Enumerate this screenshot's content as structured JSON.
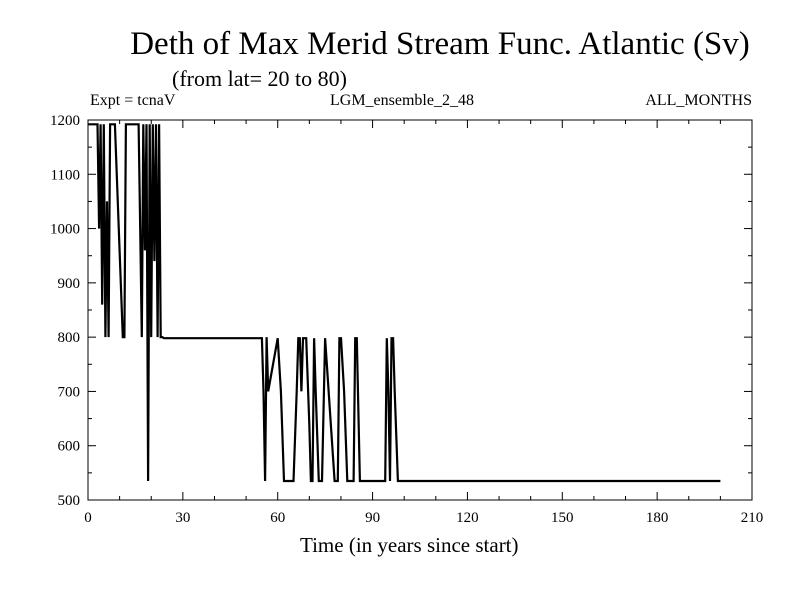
{
  "chart_data": {
    "type": "line",
    "title": "Deth of Max Merid Stream Func. Atlantic (Sv)",
    "subtitle": "(from lat= 20 to 80)",
    "info_left": "Expt = tcnaV",
    "info_center": "LGM_ensemble_2_48",
    "info_right": "ALL_MONTHS",
    "xlabel": "Time (in years since start)",
    "ylabel": "",
    "xlim": [
      0,
      210
    ],
    "ylim": [
      500,
      1200
    ],
    "xticks": [
      0,
      30,
      60,
      90,
      120,
      150,
      180,
      210
    ],
    "yticks": [
      500,
      600,
      700,
      800,
      900,
      1000,
      1100,
      1200
    ],
    "grid": false,
    "series": [
      {
        "x": [
          0,
          3,
          3.5,
          4,
          4.5,
          5,
          5.5,
          6,
          6.5,
          7,
          7.5,
          8,
          8.5,
          11,
          11.5,
          12,
          12.5,
          16,
          16.5,
          17,
          17.5,
          18,
          18.5,
          19,
          19.5,
          20,
          20.5,
          21,
          21.5,
          22,
          22.5,
          23,
          23.5,
          24,
          54,
          55,
          55.5,
          56,
          56.5,
          57,
          60,
          61,
          62,
          63,
          65,
          66,
          66.5,
          67,
          67.5,
          68,
          69,
          70,
          70.5,
          71,
          71.5,
          72,
          73,
          74,
          75,
          78,
          79,
          79.5,
          80,
          81,
          82,
          83,
          84,
          84.5,
          85,
          86,
          94,
          94.5,
          95,
          95.5,
          96,
          96.5,
          97,
          98,
          200
        ],
        "y": [
          1192,
          1192,
          1000,
          1192,
          860,
          1192,
          800,
          1050,
          800,
          1192,
          1192,
          1192,
          1192,
          800,
          800,
          1192,
          1192,
          1192,
          1000,
          800,
          1192,
          960,
          1192,
          535,
          1192,
          800,
          1192,
          940,
          1192,
          800,
          1192,
          800,
          800,
          798,
          798,
          798,
          700,
          535,
          800,
          700,
          798,
          700,
          535,
          535,
          535,
          700,
          798,
          798,
          700,
          798,
          798,
          640,
          535,
          535,
          798,
          700,
          535,
          535,
          798,
          535,
          535,
          798,
          798,
          700,
          535,
          535,
          535,
          798,
          798,
          535,
          535,
          798,
          700,
          535,
          798,
          798,
          700,
          535,
          535
        ]
      }
    ]
  }
}
